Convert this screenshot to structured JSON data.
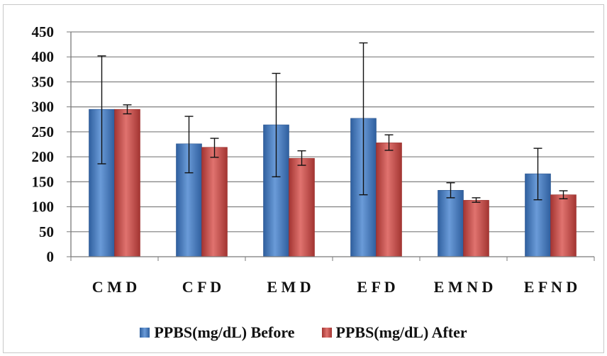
{
  "chart_data": {
    "type": "bar",
    "categories": [
      "C M D",
      "C F D",
      "E M D",
      "E F D",
      "E M N D",
      "E F N D"
    ],
    "series": [
      {
        "name": "PPBS(mg/dL) Before",
        "color": "#4A7EBB",
        "values": [
          295,
          226,
          264,
          277,
          133,
          166
        ],
        "error_low": [
          186,
          168,
          160,
          124,
          118,
          114
        ],
        "error_high": [
          402,
          281,
          367,
          428,
          148,
          217
        ]
      },
      {
        "name": "PPBS(mg/dL) After",
        "color": "#C0504D",
        "values": [
          295,
          219,
          197,
          228,
          113,
          124
        ],
        "error_low": [
          286,
          199,
          183,
          213,
          109,
          116
        ],
        "error_high": [
          304,
          237,
          212,
          244,
          118,
          132
        ]
      }
    ],
    "y_ticks": [
      "0",
      "50",
      "100",
      "150",
      "200",
      "250",
      "300",
      "350",
      "400",
      "450"
    ],
    "ylim": [
      0,
      450
    ],
    "grid": true,
    "legend_position": "bottom"
  }
}
